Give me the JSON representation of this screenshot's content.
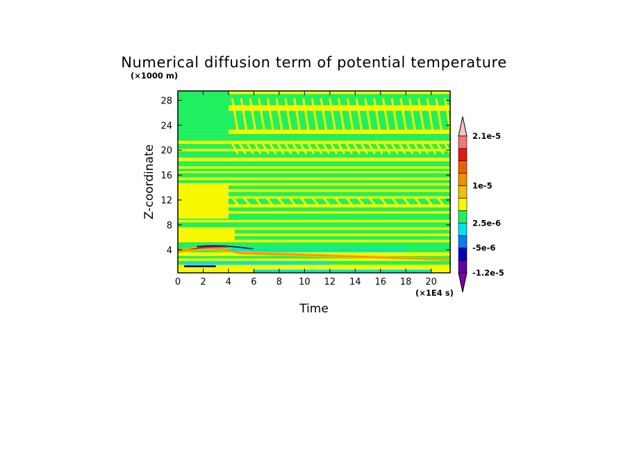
{
  "chart_data": {
    "type": "heatmap",
    "title": "Numerical diffusion term of potential temperature",
    "xlabel": "Time",
    "ylabel": "Z-coordinate",
    "x_scale_note": "(×1E4 s)",
    "y_scale_note": "(×1000 m)",
    "xlim": [
      0,
      21.5
    ],
    "ylim": [
      0.3,
      29.5
    ],
    "x_ticks": [
      "0",
      "2",
      "4",
      "6",
      "8",
      "10",
      "12",
      "14",
      "16",
      "18",
      "20"
    ],
    "y_ticks": [
      "4",
      "8",
      "12",
      "16",
      "20",
      "24",
      "28"
    ],
    "colorbar": {
      "labels": [
        "2.1e-5",
        "1e-5",
        "2.5e-6",
        "-5e-6",
        "-1.2e-5"
      ],
      "colors": [
        "#f8c0c0",
        "#f07878",
        "#e01818",
        "#f06000",
        "#f09000",
        "#f0c000",
        "#f8f800",
        "#20f060",
        "#00e0f0",
        "#0080f0",
        "#0000c0",
        "#6000a0",
        "#8000a0"
      ]
    },
    "colors": {
      "green": "#20f060",
      "yellow": "#f8f800",
      "gold": "#f0c000",
      "orange": "#f09000",
      "red": "#e01818",
      "cyan": "#00e0f0",
      "blue": "#0000c0",
      "lightblue": "#0080f0",
      "purple": "#8000a0",
      "pink": "#f07878"
    }
  }
}
